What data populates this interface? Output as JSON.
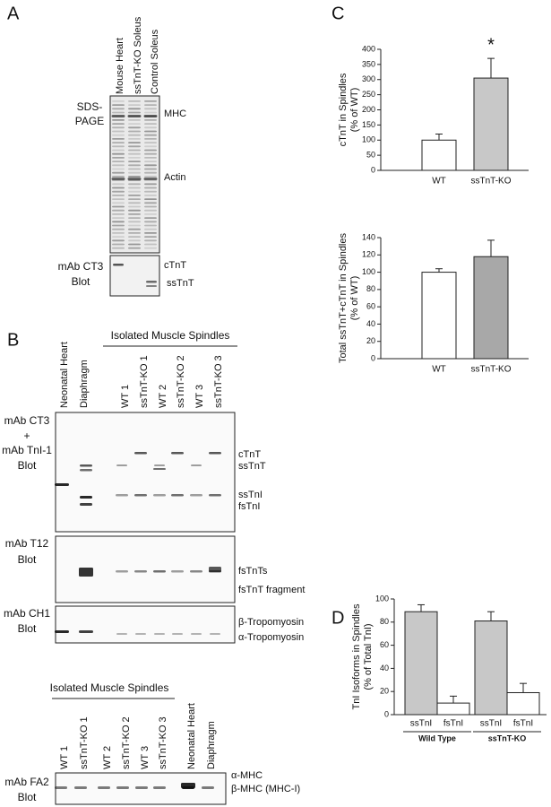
{
  "panel_letters": [
    "A",
    "B",
    "C",
    "D"
  ],
  "panel_a": {
    "lanes": [
      "Mouse Heart",
      "ssTnT-KO Soleus",
      "Control Soleus"
    ],
    "gel_label": [
      "SDS-",
      "PAGE"
    ],
    "gel_markers": [
      "MHC",
      "Actin"
    ],
    "blot_label": [
      "mAb CT3",
      "Blot"
    ],
    "blot_markers": [
      "cTnT",
      "ssTnT"
    ]
  },
  "panel_b": {
    "top_lanes": [
      "Neonatal Heart",
      "Diaphragm"
    ],
    "header": "Isolated Muscle Spindles",
    "spindle_lanes": [
      "WT 1",
      "ssTnT-KO 1",
      "WT 2",
      "ssTnT-KO 2",
      "WT 3",
      "ssTnT-KO 3"
    ],
    "blots": [
      {
        "label": [
          "mAb CT3",
          "+",
          "mAb TnI-1",
          "Blot"
        ],
        "markers": [
          "cTnT",
          "ssTnT",
          "ssTnI",
          "fsTnI"
        ]
      },
      {
        "label": [
          "mAb T12",
          "Blot"
        ],
        "markers": [
          "fsTnTs",
          "fsTnT fragment"
        ]
      },
      {
        "label": [
          "mAb CH1",
          "Blot"
        ],
        "markers": [
          "β-Tropomyosin",
          "α-Tropomyosin"
        ]
      }
    ],
    "bottom_header": "Isolated Muscle Spindles",
    "bottom_lanes": [
      "WT 1",
      "ssTnT-KO 1",
      "WT 2",
      "ssTnT-KO 2",
      "WT 3",
      "ssTnT-KO 3",
      "Neonatal Heart",
      "Diaphragm"
    ],
    "bottom_blot": {
      "label": [
        "mAb FA2",
        "Blot"
      ],
      "markers": [
        "α-MHC",
        "β-MHC (MHC-I)"
      ]
    }
  },
  "chart_data": [
    {
      "type": "bar",
      "y_label": [
        "cTnT in Spindles",
        "(% of WT)"
      ],
      "categories": [
        "WT",
        "ssTnT-KO"
      ],
      "values": [
        100,
        305
      ],
      "errors": [
        20,
        65
      ],
      "colors": [
        "#ffffff",
        "#c8c8c8"
      ],
      "annotation": "*",
      "ylim": [
        0,
        400
      ],
      "yticks": [
        0,
        50,
        100,
        150,
        200,
        250,
        300,
        350,
        400
      ]
    },
    {
      "type": "bar",
      "y_label": [
        "Total ssTnT+cTnT in Spindles",
        "(% of WT)"
      ],
      "categories": [
        "WT",
        "ssTnT-KO"
      ],
      "values": [
        100,
        118
      ],
      "errors": [
        4,
        19
      ],
      "colors": [
        "#ffffff",
        "#a8a8a8"
      ],
      "ylim": [
        0,
        140
      ],
      "yticks": [
        0,
        20,
        40,
        60,
        80,
        100,
        120,
        140
      ]
    },
    {
      "type": "bar",
      "y_label": [
        "TnI Isoforms in Spindles",
        "(% of Total TnI)"
      ],
      "groups": [
        "Wild Type",
        "ssTnT-KO"
      ],
      "series": [
        {
          "name": "ssTnI",
          "color": "#c8c8c8",
          "values": [
            89,
            81
          ],
          "errors": [
            6,
            8
          ]
        },
        {
          "name": "fsTnI",
          "color": "#ffffff",
          "values": [
            10,
            19
          ],
          "errors": [
            6,
            8
          ]
        }
      ],
      "ylim": [
        0,
        100
      ],
      "yticks": [
        0,
        20,
        40,
        60,
        80,
        100
      ]
    }
  ]
}
